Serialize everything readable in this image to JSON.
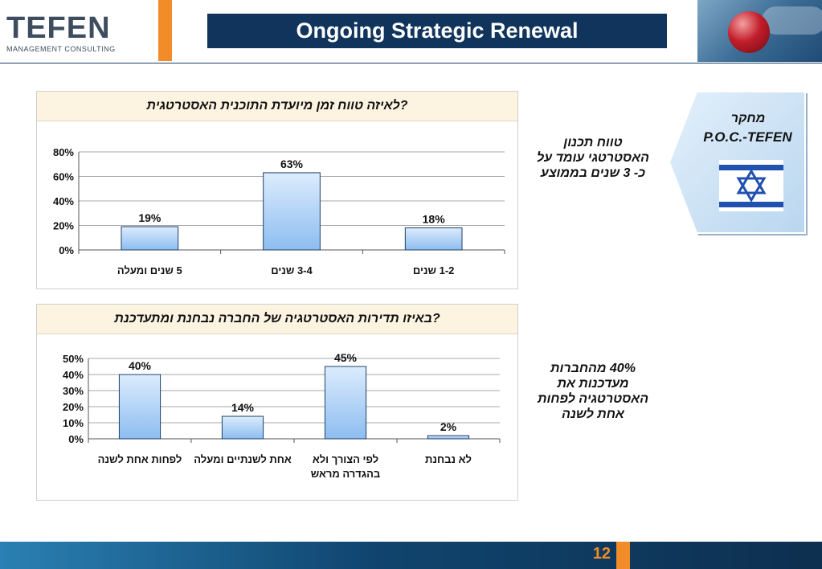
{
  "header": {
    "logo_main": "TEFEN",
    "logo_sub": "MANAGEMENT  CONSULTING",
    "title": "Ongoing Strategic Renewal"
  },
  "chart1": {
    "question": "?לאיזה טווח זמן מיועדת התוכנית האסטרטגית",
    "side_note": "טווח תכנון האסטרטגי עומד על כ- 3 שנים בממוצע"
  },
  "chart2": {
    "question": "?באיזו תדירות האסטרטגיה של החברה נבחנת ומתעדכנת",
    "side_note": "40% מהחברות מעדכנות את האסטרטגיה לפחות אחת לשנה"
  },
  "callout": {
    "line1": "מחקר",
    "line2": "P.O.C.-TEFEN"
  },
  "footer": {
    "page_number": "12"
  },
  "colors": {
    "navy": "#10345c",
    "orange": "#f28c28",
    "bar_fill_top": "#dcecfd",
    "bar_fill_bottom": "#8dbdf0",
    "panel_title_bg": "#fdf3e1"
  },
  "chart_data": [
    {
      "type": "bar",
      "title": "?לאיזה טווח זמן מיועדת התוכנית האסטרטגית",
      "categories": [
        "5 שנים ומעלה",
        "3-4 שנים",
        "1-2 שנים"
      ],
      "values": [
        19,
        63,
        18
      ],
      "data_labels": [
        "19%",
        "63%",
        "18%"
      ],
      "yticks": [
        "0%",
        "20%",
        "40%",
        "60%",
        "80%"
      ],
      "ylim": [
        0,
        80
      ],
      "grid": true,
      "legend": "none"
    },
    {
      "type": "bar",
      "title": "?באיזו תדירות האסטרטגיה של החברה נבחנת ומתעדכנת",
      "categories": [
        "לפחות אחת לשנה",
        "אחת לשנתיים ומעלה",
        "לפי הצורך ולא בהגדרה מראש",
        "לא נבחנת"
      ],
      "category_lines": [
        [
          "לפחות אחת לשנה"
        ],
        [
          "אחת לשנתיים ומעלה"
        ],
        [
          "לפי הצורך ולא",
          "בהגדרה מראש"
        ],
        [
          "לא נבחנת"
        ]
      ],
      "values": [
        40,
        14,
        45,
        2
      ],
      "data_labels": [
        "40%",
        "14%",
        "45%",
        "2%"
      ],
      "yticks": [
        "0%",
        "10%",
        "20%",
        "30%",
        "40%",
        "50%"
      ],
      "ylim": [
        0,
        50
      ],
      "grid": true,
      "legend": "none"
    }
  ]
}
